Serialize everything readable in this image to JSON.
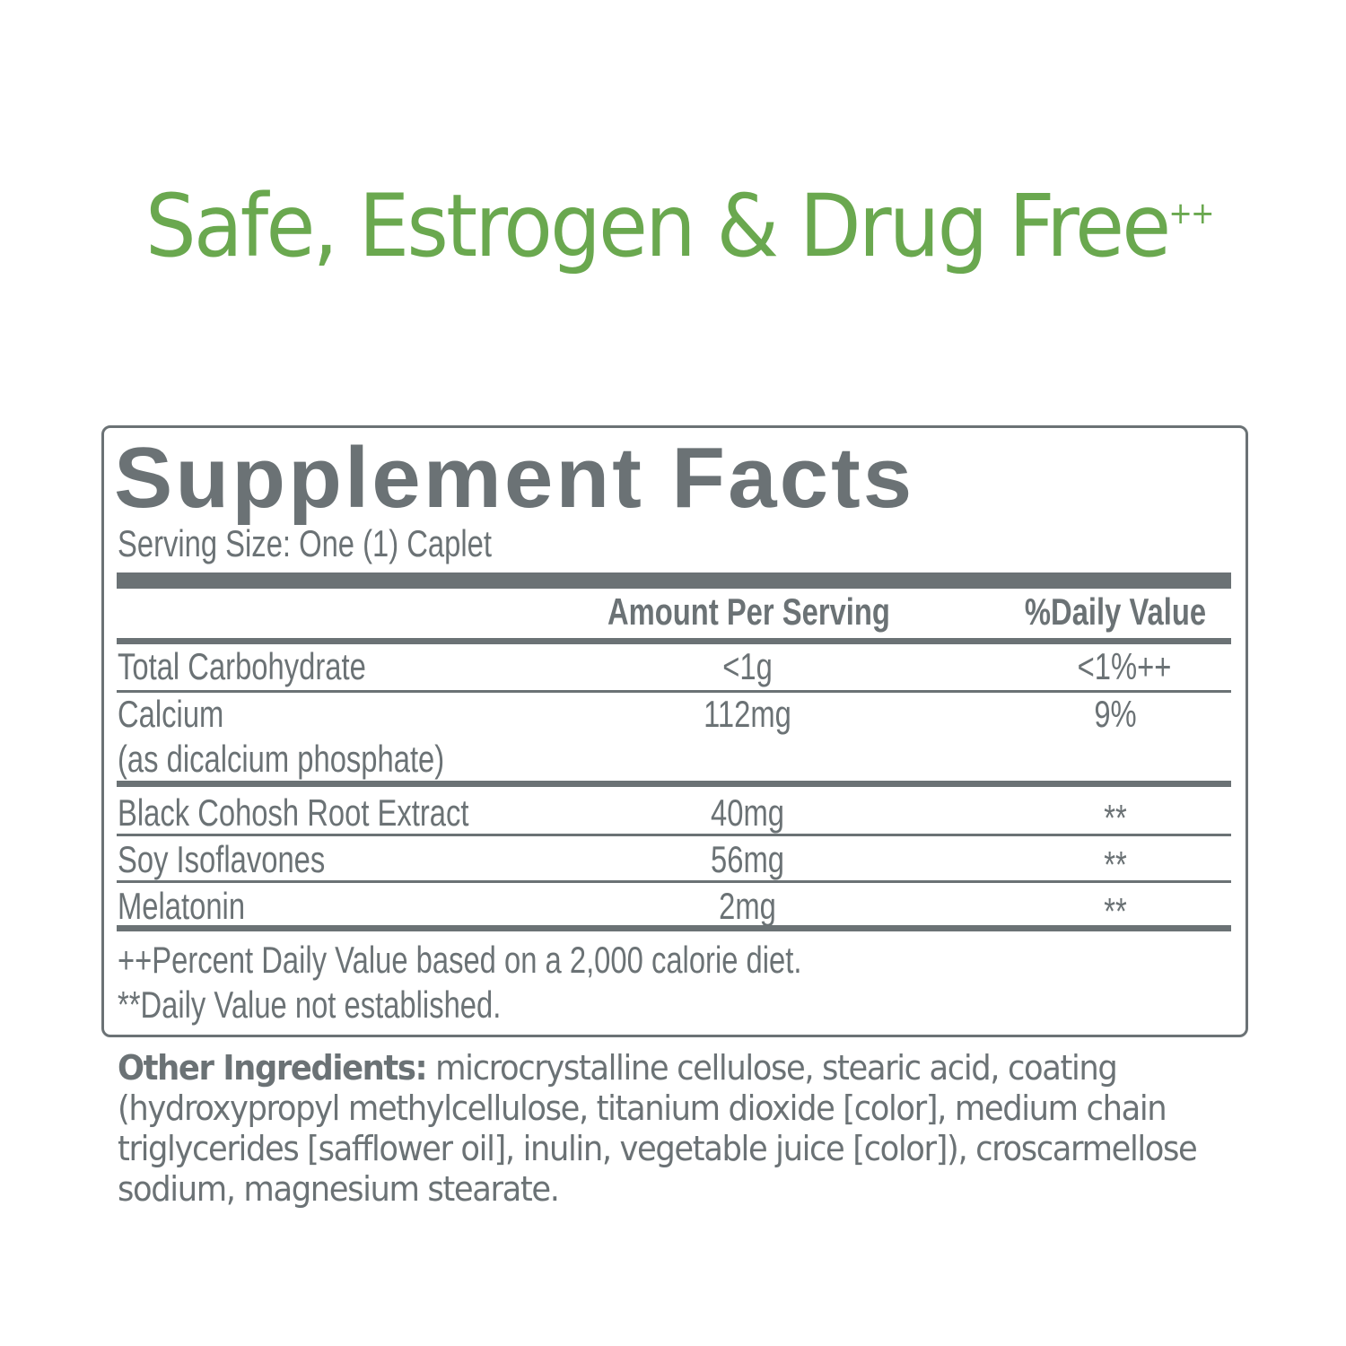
{
  "headline": {
    "text": "Safe, Estrogen & Drug Free",
    "mark": "++"
  },
  "facts": {
    "title": "Supplement Facts",
    "serving_size": "Serving Size: One (1) Caplet",
    "header": {
      "amount": "Amount Per Serving",
      "dv": "%Daily Value"
    },
    "rows": [
      {
        "name": "Total Carbohydrate",
        "sub": "",
        "amount": "<1g",
        "dv": "<1%++"
      },
      {
        "name": "Calcium",
        "sub": "(as dicalcium phosphate)",
        "amount": "112mg",
        "dv": "9%"
      },
      {
        "name": "Black Cohosh Root Extract",
        "sub": "",
        "amount": "40mg",
        "dv": "**"
      },
      {
        "name": "Soy Isoflavones",
        "sub": "",
        "amount": "56mg",
        "dv": "**"
      },
      {
        "name": "Melatonin",
        "sub": "",
        "amount": "2mg",
        "dv": "**"
      }
    ],
    "footnotes": [
      "++Percent Daily Value based on a 2,000 calorie diet.",
      "**Daily Value not established."
    ]
  },
  "other_ingredients": {
    "label": "Other Ingredients:",
    "text": " microcrystalline cellulose, stearic acid, coating (hydroxypropyl methylcellulose, titanium dioxide [color], medium chain triglycerides [safflower oil], inulin, vegetable juice [color]), croscarmellose sodium, magnesium stearate."
  },
  "colors": {
    "green": "#6aa84f",
    "gray": "#6b7275"
  }
}
